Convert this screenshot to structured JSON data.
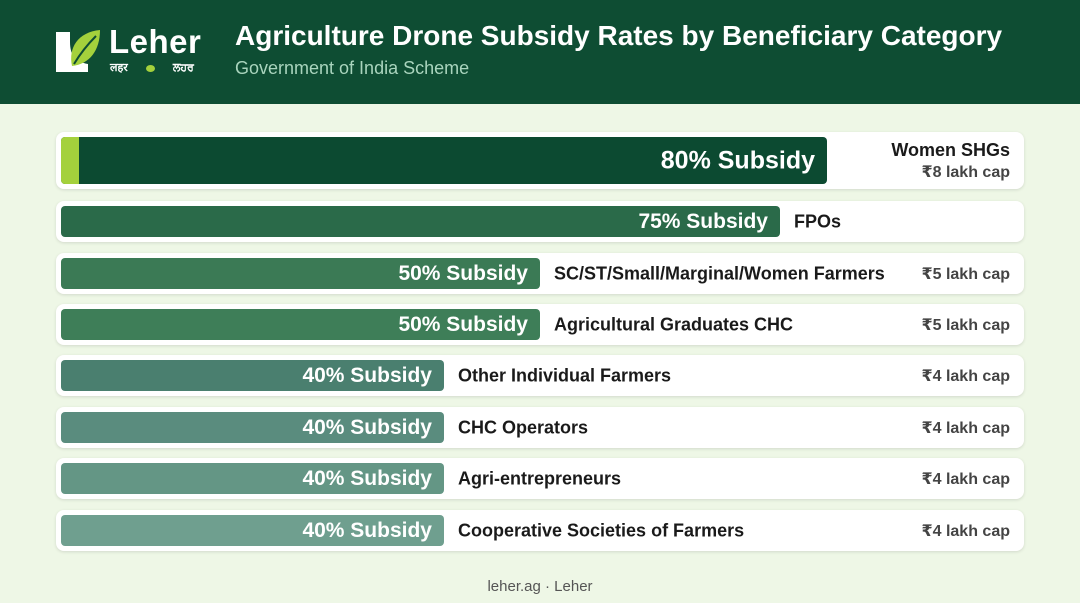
{
  "header": {
    "brand": "Leher",
    "brand_sub_left": "लहर",
    "brand_sub_right": "ਲਹਰ",
    "title": "Agriculture Drone Subsidy Rates by Beneficiary Category",
    "subtitle": "Government of India Scheme"
  },
  "footer": {
    "text": "leher.ag · Leher"
  },
  "colors": {
    "header_bg": "#0e4d33",
    "accent": "#a4d13c",
    "page_bg": "#eef7e6",
    "bar_colors": [
      "#0c4a31",
      "#2a6a49",
      "#3b7a55",
      "#3e7e58",
      "#4a7f6f",
      "#5a8c7e",
      "#649685",
      "#6f9f8f"
    ]
  },
  "chart_data": {
    "type": "bar",
    "orientation": "horizontal",
    "title": "Agriculture Drone Subsidy Rates by Beneficiary Category",
    "subtitle": "Government of India Scheme",
    "xlim": [
      0,
      100
    ],
    "grid": false,
    "categories": [
      "Women SHGs",
      "FPOs",
      "SC/ST/Small/Marginal/Women Farmers",
      "Agricultural Graduates CHC",
      "Other Individual Farmers",
      "CHC Operators",
      "Agri-entrepreneurs",
      "Cooperative Societies of Farmers"
    ],
    "values": [
      80,
      75,
      50,
      50,
      40,
      40,
      40,
      40
    ],
    "bar_labels": [
      "80% Subsidy",
      "75% Subsidy",
      "50% Subsidy",
      "50% Subsidy",
      "40% Subsidy",
      "40% Subsidy",
      "40% Subsidy",
      "40% Subsidy"
    ],
    "caps": [
      "₹8 lakh cap",
      "",
      "₹5 lakh cap",
      "₹5 lakh cap",
      "₹4 lakh cap",
      "₹4 lakh cap",
      "₹4 lakh cap",
      "₹4 lakh cap"
    ]
  }
}
